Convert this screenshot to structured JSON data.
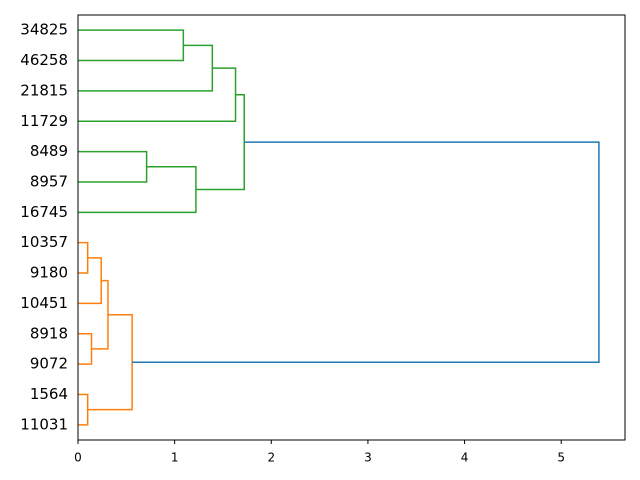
{
  "chart_data": {
    "type": "dendrogram",
    "orientation": "left",
    "leaves": [
      "34825",
      "46258",
      "21815",
      "11729",
      "8489",
      "8957",
      "16745",
      "10357",
      "9180",
      "10451",
      "8918",
      "9072",
      "1564",
      "11031"
    ],
    "merges": [
      {
        "children": [
          0,
          1
        ],
        "height": 1.09,
        "color": "#2ca02c"
      },
      {
        "children": [
          14,
          2
        ],
        "height": 1.39,
        "color": "#2ca02c"
      },
      {
        "children": [
          15,
          3
        ],
        "height": 1.63,
        "color": "#2ca02c"
      },
      {
        "children": [
          4,
          5
        ],
        "height": 0.71,
        "color": "#2ca02c"
      },
      {
        "children": [
          17,
          6
        ],
        "height": 1.22,
        "color": "#2ca02c"
      },
      {
        "children": [
          16,
          18
        ],
        "height": 1.72,
        "color": "#2ca02c"
      },
      {
        "children": [
          7,
          8
        ],
        "height": 0.1,
        "color": "#ff7f0e"
      },
      {
        "children": [
          20,
          9
        ],
        "height": 0.24,
        "color": "#ff7f0e"
      },
      {
        "children": [
          10,
          11
        ],
        "height": 0.14,
        "color": "#ff7f0e"
      },
      {
        "children": [
          21,
          22
        ],
        "height": 0.31,
        "color": "#ff7f0e"
      },
      {
        "children": [
          12,
          13
        ],
        "height": 0.1,
        "color": "#ff7f0e"
      },
      {
        "children": [
          23,
          24
        ],
        "height": 0.56,
        "color": "#ff7f0e"
      },
      {
        "children": [
          19,
          25
        ],
        "height": 5.39,
        "color": "#1f77b4"
      }
    ],
    "xlim": [
      0,
      5.66
    ],
    "xticks": [
      0,
      1,
      2,
      3,
      4,
      5
    ]
  }
}
